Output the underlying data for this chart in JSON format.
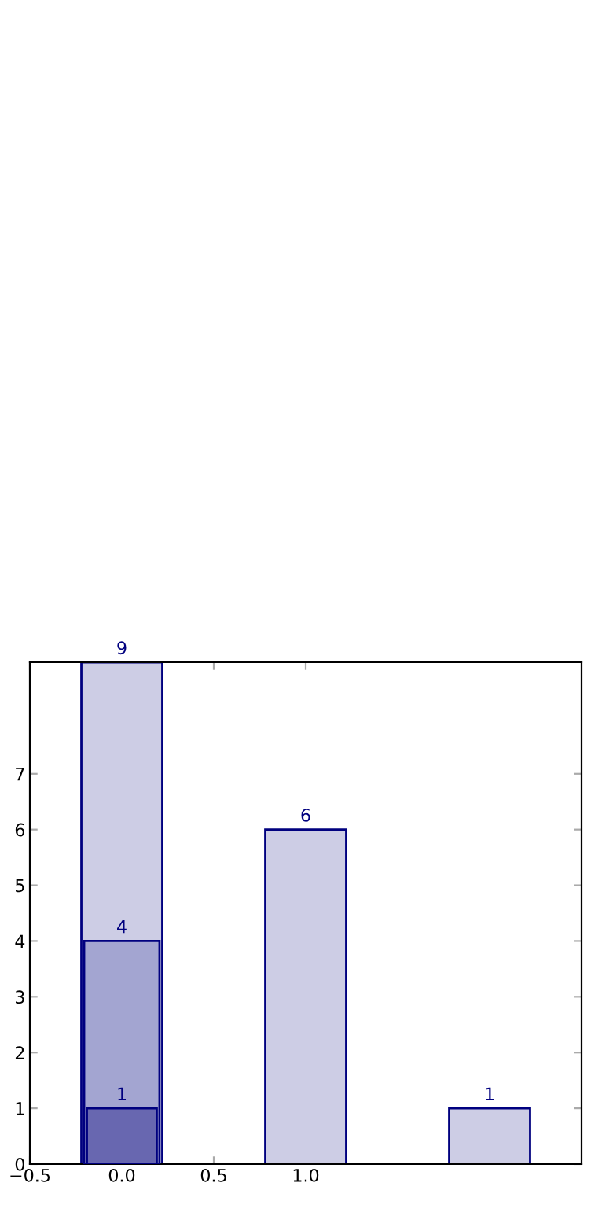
{
  "chart_data": {
    "type": "bar",
    "series": [
      {
        "x": [
          0,
          1,
          2
        ],
        "values": [
          9,
          6,
          1
        ],
        "color": "#cdcde5"
      },
      {
        "x": [
          0
        ],
        "values": [
          4
        ],
        "color": "#a3a5d1"
      },
      {
        "x": [
          0
        ],
        "values": [
          1
        ],
        "color": "#6867b0"
      }
    ],
    "xlim": [
      -0.5,
      2.5
    ],
    "ylim": [
      0,
      9
    ],
    "xticks": [
      {
        "value": -0.5,
        "label": "−0.5"
      },
      {
        "value": 0,
        "label": "0.0"
      },
      {
        "value": 0.5,
        "label": "0.5"
      },
      {
        "value": 1,
        "label": "1.0"
      }
    ],
    "yticks": [
      0,
      1,
      2,
      3,
      4,
      5,
      6,
      7
    ],
    "data_labels": true,
    "grid": false,
    "legend": false
  }
}
